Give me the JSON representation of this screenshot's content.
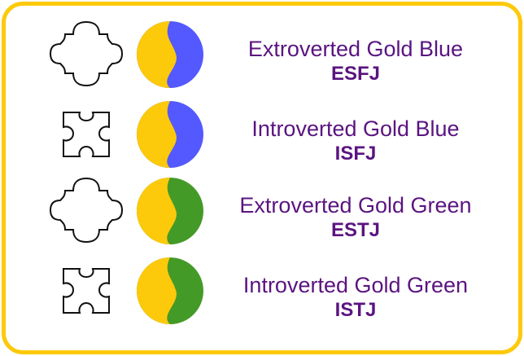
{
  "colors": {
    "border": "#fdc90b",
    "gold": "#fdc90b",
    "blue": "#5459ff",
    "green": "#449a27",
    "text": "#5a1480"
  },
  "rows": [
    {
      "title": "Extroverted Gold Blue",
      "code": "ESFJ",
      "puzzle_icon": "puzzle-extrovert-icon",
      "second_color": "blue"
    },
    {
      "title": "Introverted Gold Blue",
      "code": "ISFJ",
      "puzzle_icon": "puzzle-introvert-icon",
      "second_color": "blue"
    },
    {
      "title": "Extroverted Gold Green",
      "code": "ESTJ",
      "puzzle_icon": "puzzle-extrovert-icon",
      "second_color": "green"
    },
    {
      "title": "Introverted Gold Green",
      "code": "ISTJ",
      "puzzle_icon": "puzzle-introvert-icon",
      "second_color": "green"
    }
  ]
}
